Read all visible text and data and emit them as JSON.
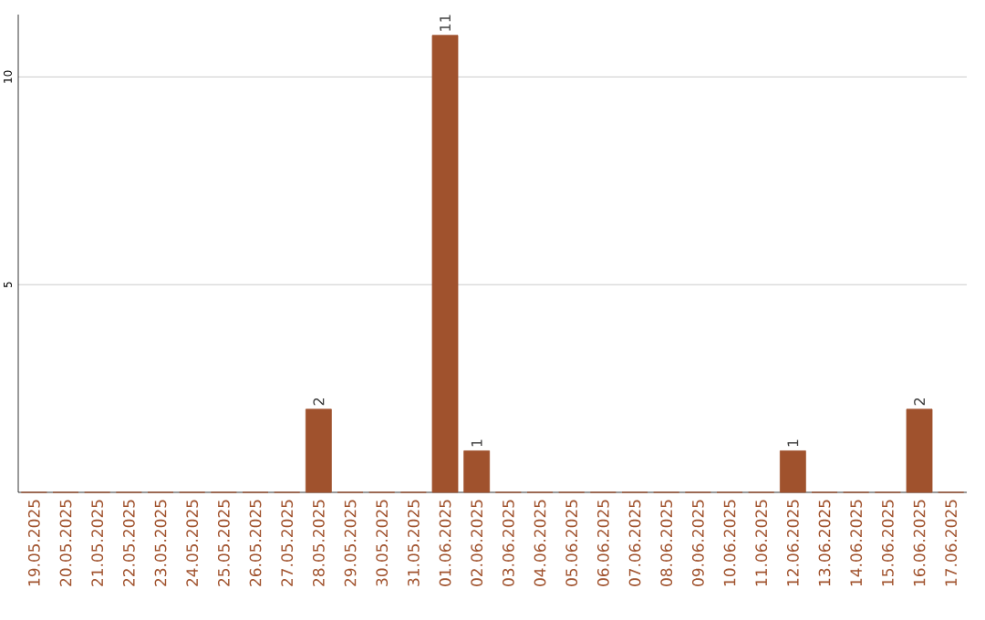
{
  "chart_data": {
    "type": "bar",
    "categories": [
      "19.05.2025",
      "20.05.2025",
      "21.05.2025",
      "22.05.2025",
      "23.05.2025",
      "24.05.2025",
      "25.05.2025",
      "26.05.2025",
      "27.05.2025",
      "28.05.2025",
      "29.05.2025",
      "30.05.2025",
      "31.05.2025",
      "01.06.2025",
      "02.06.2025",
      "03.06.2025",
      "04.06.2025",
      "05.06.2025",
      "06.06.2025",
      "07.06.2025",
      "08.06.2025",
      "09.06.2025",
      "10.06.2025",
      "11.06.2025",
      "12.06.2025",
      "13.06.2025",
      "14.06.2025",
      "15.06.2025",
      "16.06.2025",
      "17.06.2025"
    ],
    "values": [
      0,
      0,
      0,
      0,
      0,
      0,
      0,
      0,
      0,
      2,
      0,
      0,
      0,
      11,
      1,
      0,
      0,
      0,
      0,
      0,
      0,
      0,
      0,
      0,
      1,
      0,
      0,
      0,
      2,
      0
    ],
    "value_labels": [
      null,
      null,
      null,
      null,
      null,
      null,
      null,
      null,
      null,
      "2",
      null,
      null,
      null,
      "11",
      "1",
      null,
      null,
      null,
      null,
      null,
      null,
      null,
      null,
      null,
      "1",
      null,
      null,
      null,
      "2",
      null
    ],
    "color": "#a0522d",
    "ylim": [
      0,
      11.5
    ],
    "yticks": [
      5,
      10
    ],
    "grid": "y"
  }
}
